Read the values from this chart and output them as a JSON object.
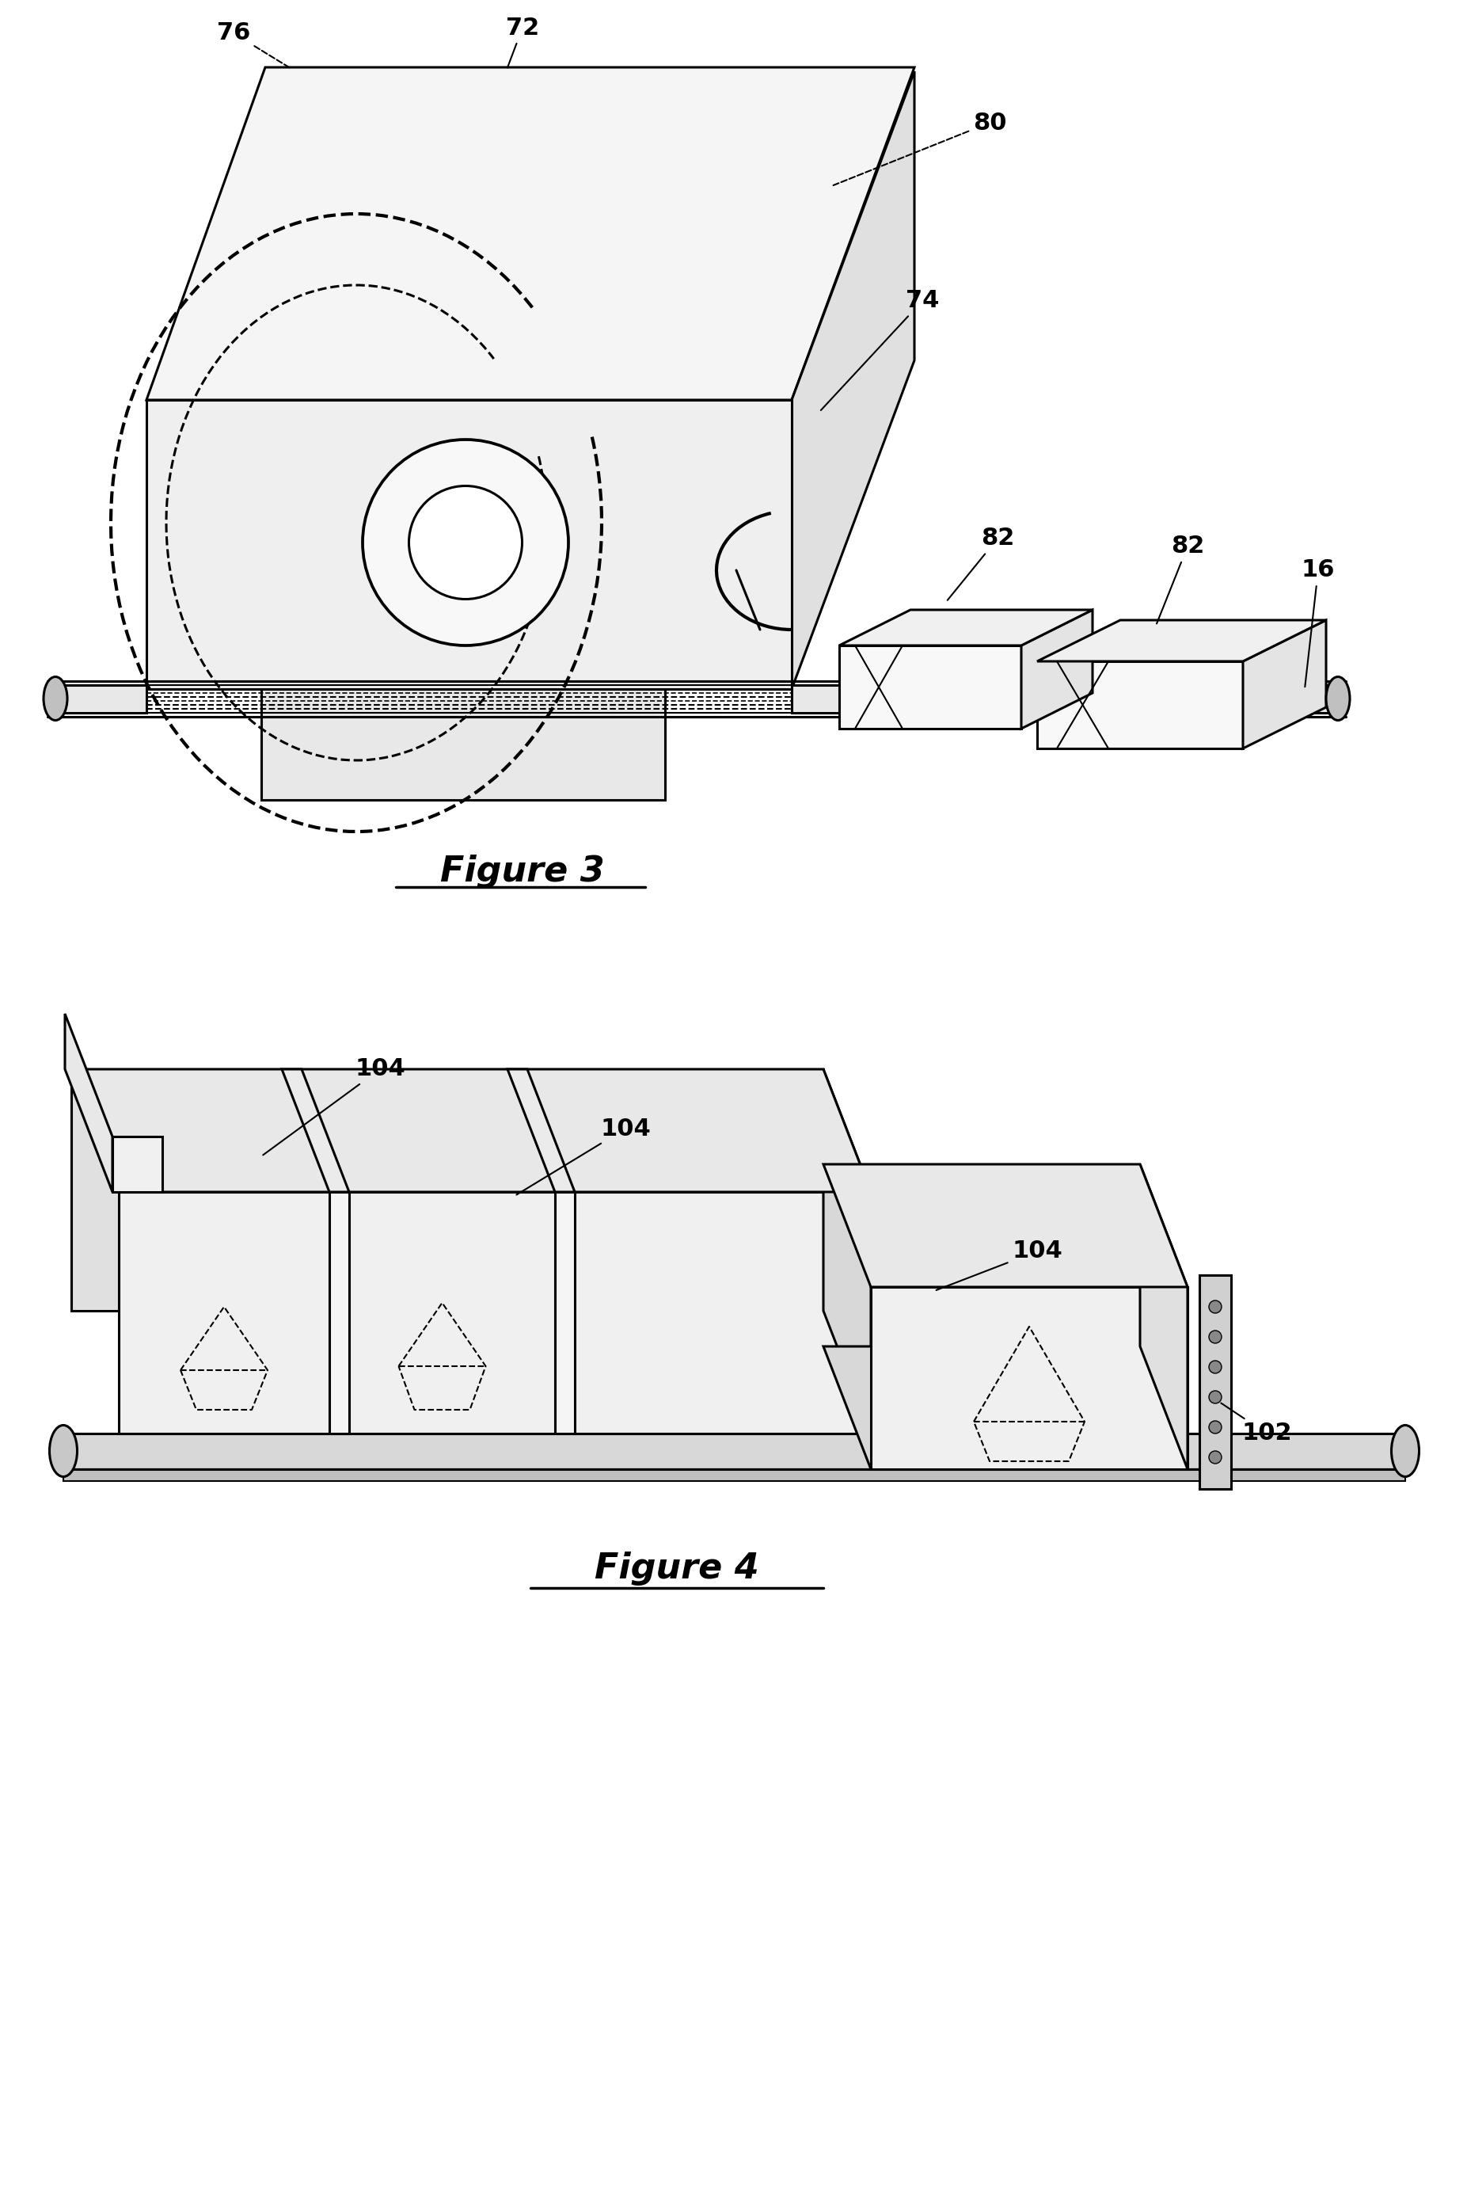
{
  "bg_color": "#ffffff",
  "line_color": "#000000",
  "dashed_color": "#000000",
  "fig3_label": "Figure 3",
  "fig4_label": "Figure 4",
  "fontsize_labels": 22,
  "fontsize_fig": 32,
  "lw": 2.2,
  "lw_thin": 1.5,
  "lw_thick": 3.0
}
